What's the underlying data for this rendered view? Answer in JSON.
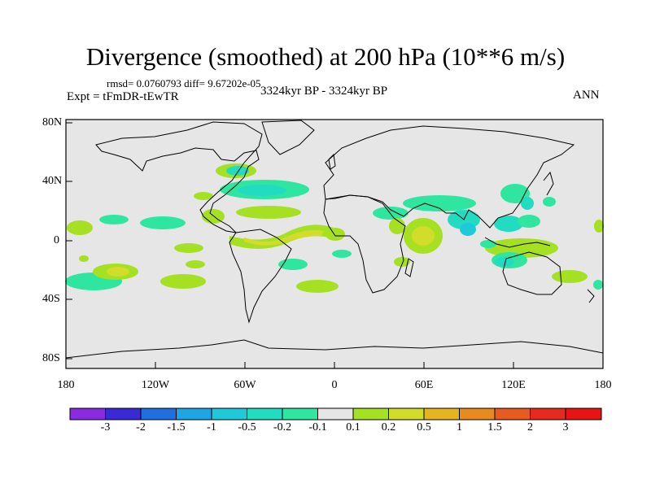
{
  "title": "Divergence (smoothed) at 200 hPa (10**6 m/s)",
  "stats_line": "rmsd= 0.0760793 diff= 9.67202e-05",
  "experiment": "Expt = tFmDR-tEwTR",
  "period": "3324kyr BP - 3324kyr BP",
  "season": "ANN",
  "lat_labels": [
    "80N",
    "40N",
    "0",
    "40S",
    "80S"
  ],
  "lon_labels": [
    "180",
    "120W",
    "60W",
    "0",
    "60E",
    "120E",
    "180"
  ],
  "colorbar": {
    "labels": [
      "-3",
      "-2",
      "-1.5",
      "-1",
      "-0.5",
      "-0.2",
      "-0.1",
      "0.1",
      "0.2",
      "0.5",
      "1",
      "1.5",
      "2",
      "3"
    ],
    "colors": [
      "#8a2be2",
      "#3a2ad6",
      "#1f6fe0",
      "#1ea5e6",
      "#1ec9da",
      "#22dcc2",
      "#2ee6a0",
      "#e6e6e6",
      "#a6e022",
      "#d2dc2a",
      "#e6b41e",
      "#e88a1e",
      "#e85a1e",
      "#e82a1e",
      "#e81414"
    ]
  },
  "map_colors": {
    "background": "#e6e6e6",
    "neg_light": "#2ee6a0",
    "neg_mid": "#22dcc2",
    "neg_strong": "#1ec9da",
    "pos_light": "#a6e022",
    "pos_mid": "#d2dc2a",
    "pos_strong": "#e6b41e"
  }
}
